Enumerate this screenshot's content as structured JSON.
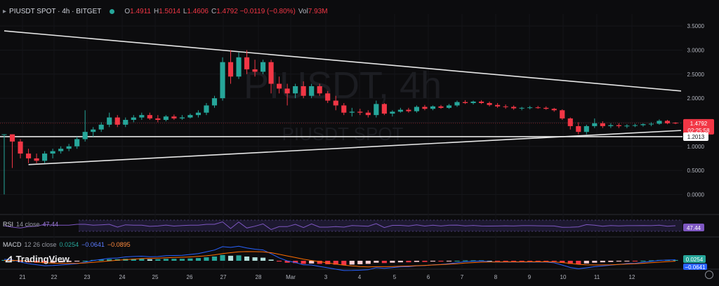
{
  "header": {
    "symbol": "PIUSDT SPOT · 4h · BITGET",
    "o_key": "O",
    "o_val": "1.4911",
    "h_key": "H",
    "h_val": "1.5014",
    "l_key": "L",
    "l_val": "1.4606",
    "c_key": "C",
    "c_val": "1.4792 −0.0119 (−0.80%)",
    "vol_key": "Vol",
    "vol_val": "7.93M"
  },
  "watermark": {
    "line1": "PIUSDT, 4h",
    "line2": "PIUSDT SPOT"
  },
  "brand": "TradingView",
  "rsi": {
    "name": "RSI",
    "params": "14 close",
    "value": "47.44"
  },
  "macd": {
    "name": "MACD",
    "params": "12 26 close",
    "v1": "0.0254",
    "v2": "−0.0641",
    "v3": "−0.0895"
  },
  "price_badge": {
    "price": "1.4792",
    "countdown": "02:25:58"
  },
  "support_badge": "1.2013",
  "colors": {
    "up": "#26a69a",
    "down": "#f23645",
    "macd_line": "#2962ff",
    "signal_line": "#ff6d00",
    "rsi_line": "#7e57c2"
  },
  "chart_data": {
    "type": "candlestick",
    "y_ticks": [
      "3.5000",
      "3.0000",
      "2.5000",
      "2.0000",
      "1.5000",
      "1.0000",
      "0.5000",
      "0.0000"
    ],
    "ylim": [
      -0.3,
      3.75
    ],
    "x_ticks": [
      "21",
      "22",
      "23",
      "24",
      "25",
      "26",
      "27",
      "28",
      "Mar",
      "3",
      "4",
      "5",
      "6",
      "7",
      "8",
      "9",
      "10",
      "11",
      "12"
    ],
    "candles": [
      [
        1.25,
        1.25,
        0,
        1.25
      ],
      [
        1.25,
        1.25,
        0.55,
        1.1
      ],
      [
        1.1,
        1.15,
        0.75,
        0.85
      ],
      [
        0.85,
        0.95,
        0.65,
        0.75
      ],
      [
        0.75,
        0.85,
        0.65,
        0.7
      ],
      [
        0.7,
        0.9,
        0.65,
        0.85
      ],
      [
        0.85,
        0.95,
        0.75,
        0.9
      ],
      [
        0.9,
        1.0,
        0.85,
        0.95
      ],
      [
        0.95,
        1.05,
        0.9,
        1.0
      ],
      [
        1.0,
        1.2,
        0.95,
        1.15
      ],
      [
        1.15,
        1.75,
        1.1,
        1.3
      ],
      [
        1.3,
        1.4,
        1.2,
        1.35
      ],
      [
        1.35,
        1.5,
        1.3,
        1.45
      ],
      [
        1.45,
        1.7,
        1.4,
        1.6
      ],
      [
        1.6,
        1.65,
        1.4,
        1.45
      ],
      [
        1.45,
        1.6,
        1.4,
        1.55
      ],
      [
        1.55,
        1.65,
        1.5,
        1.6
      ],
      [
        1.6,
        1.7,
        1.55,
        1.65
      ],
      [
        1.65,
        1.7,
        1.55,
        1.58
      ],
      [
        1.58,
        1.65,
        1.5,
        1.55
      ],
      [
        1.55,
        1.65,
        1.52,
        1.62
      ],
      [
        1.62,
        1.66,
        1.55,
        1.58
      ],
      [
        1.58,
        1.65,
        1.55,
        1.6
      ],
      [
        1.6,
        1.68,
        1.58,
        1.65
      ],
      [
        1.65,
        1.75,
        1.6,
        1.7
      ],
      [
        1.7,
        1.9,
        1.65,
        1.85
      ],
      [
        1.85,
        2.05,
        1.8,
        2.0
      ],
      [
        2.0,
        2.85,
        1.95,
        2.75
      ],
      [
        2.75,
        3.0,
        2.3,
        2.45
      ],
      [
        2.45,
        2.95,
        2.4,
        2.85
      ],
      [
        2.85,
        3.0,
        2.5,
        2.6
      ],
      [
        2.6,
        2.8,
        2.45,
        2.55
      ],
      [
        2.55,
        2.8,
        2.5,
        2.75
      ],
      [
        2.75,
        2.8,
        2.1,
        2.3
      ],
      [
        2.3,
        2.45,
        2.1,
        2.2
      ],
      [
        2.2,
        2.3,
        1.85,
        2.1
      ],
      [
        2.1,
        2.3,
        2.0,
        2.25
      ],
      [
        2.25,
        2.35,
        2.0,
        2.05
      ],
      [
        2.05,
        2.3,
        2.0,
        2.25
      ],
      [
        2.25,
        2.3,
        2.05,
        2.1
      ],
      [
        2.1,
        2.15,
        1.9,
        1.95
      ],
      [
        1.95,
        2.05,
        1.75,
        1.85
      ],
      [
        1.85,
        1.9,
        1.65,
        1.7
      ],
      [
        1.7,
        1.8,
        1.62,
        1.72
      ],
      [
        1.72,
        1.78,
        1.65,
        1.7
      ],
      [
        1.7,
        1.75,
        1.6,
        1.65
      ],
      [
        1.65,
        1.95,
        1.6,
        1.88
      ],
      [
        1.88,
        1.9,
        1.65,
        1.68
      ],
      [
        1.68,
        1.75,
        1.62,
        1.72
      ],
      [
        1.72,
        1.8,
        1.7,
        1.76
      ],
      [
        1.76,
        1.8,
        1.7,
        1.73
      ],
      [
        1.73,
        1.85,
        1.7,
        1.82
      ],
      [
        1.82,
        1.86,
        1.75,
        1.78
      ],
      [
        1.78,
        1.85,
        1.75,
        1.83
      ],
      [
        1.83,
        1.86,
        1.78,
        1.8
      ],
      [
        1.8,
        1.88,
        1.78,
        1.85
      ],
      [
        1.85,
        1.95,
        1.82,
        1.92
      ],
      [
        1.92,
        1.96,
        1.88,
        1.9
      ],
      [
        1.9,
        1.95,
        1.87,
        1.93
      ],
      [
        1.93,
        1.96,
        1.88,
        1.9
      ],
      [
        1.9,
        1.93,
        1.83,
        1.86
      ],
      [
        1.86,
        1.9,
        1.8,
        1.83
      ],
      [
        1.83,
        1.87,
        1.78,
        1.82
      ],
      [
        1.82,
        1.85,
        1.76,
        1.79
      ],
      [
        1.79,
        1.82,
        1.75,
        1.8
      ],
      [
        1.8,
        1.84,
        1.77,
        1.81
      ],
      [
        1.81,
        1.84,
        1.78,
        1.8
      ],
      [
        1.8,
        1.83,
        1.76,
        1.78
      ],
      [
        1.78,
        1.8,
        1.72,
        1.75
      ],
      [
        1.75,
        1.77,
        1.55,
        1.58
      ],
      [
        1.58,
        1.6,
        1.35,
        1.42
      ],
      [
        1.42,
        1.5,
        1.25,
        1.3
      ],
      [
        1.3,
        1.45,
        1.25,
        1.42
      ],
      [
        1.42,
        1.58,
        1.38,
        1.48
      ],
      [
        1.48,
        1.52,
        1.38,
        1.42
      ],
      [
        1.42,
        1.48,
        1.38,
        1.44
      ],
      [
        1.44,
        1.48,
        1.38,
        1.42
      ],
      [
        1.42,
        1.46,
        1.38,
        1.43
      ],
      [
        1.43,
        1.47,
        1.4,
        1.44
      ],
      [
        1.44,
        1.48,
        1.41,
        1.46
      ],
      [
        1.46,
        1.5,
        1.42,
        1.47
      ],
      [
        1.47,
        1.56,
        1.45,
        1.53
      ],
      [
        1.53,
        1.55,
        1.46,
        1.48
      ],
      [
        1.4911,
        1.5014,
        1.4606,
        1.4792
      ]
    ],
    "macd_histogram": [
      0.02,
      0.01,
      -0.02,
      -0.04,
      -0.05,
      -0.06,
      -0.05,
      -0.04,
      -0.03,
      -0.02,
      0.0,
      0.02,
      0.03,
      0.04,
      0.04,
      0.05,
      0.05,
      0.05,
      0.04,
      0.04,
      0.05,
      0.05,
      0.05,
      0.06,
      0.07,
      0.09,
      0.11,
      0.15,
      0.13,
      0.14,
      0.11,
      0.09,
      0.08,
      0.03,
      -0.02,
      -0.05,
      -0.06,
      -0.08,
      -0.07,
      -0.08,
      -0.09,
      -0.1,
      -0.11,
      -0.1,
      -0.09,
      -0.08,
      -0.05,
      -0.06,
      -0.05,
      -0.04,
      -0.04,
      -0.03,
      -0.03,
      -0.02,
      -0.02,
      -0.01,
      0.0,
      0.01,
      0.01,
      0.01,
      0.0,
      -0.01,
      -0.01,
      -0.01,
      -0.01,
      -0.01,
      -0.01,
      -0.01,
      -0.02,
      -0.05,
      -0.08,
      -0.09,
      -0.07,
      -0.05,
      -0.04,
      -0.03,
      -0.02,
      -0.01,
      -0.01,
      0.0,
      0.01,
      0.02,
      0.02,
      0.02
    ]
  }
}
